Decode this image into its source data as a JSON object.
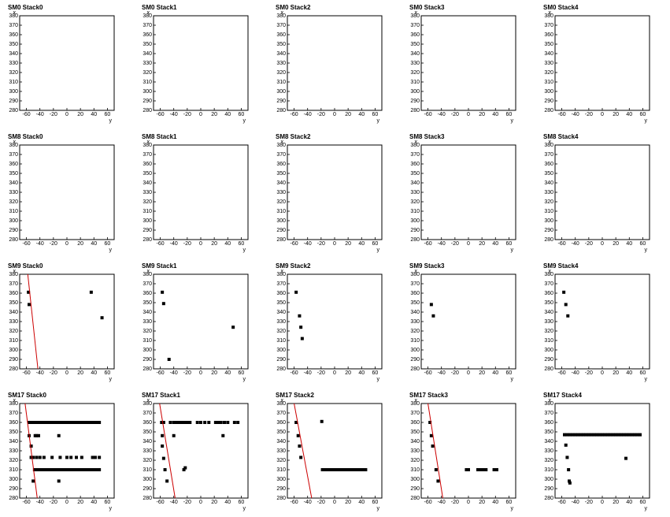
{
  "chart_data": [
    {
      "type": "scatter",
      "title": "SM0 Stack0",
      "xlabel": "y",
      "ylabel": "x",
      "xlim": [
        -70,
        70
      ],
      "ylim": [
        280,
        380
      ],
      "xticks": [
        -60,
        -40,
        -20,
        0,
        20,
        40,
        60
      ],
      "yticks": [
        280,
        290,
        300,
        310,
        320,
        330,
        340,
        350,
        360,
        370,
        380
      ],
      "series": []
    },
    {
      "type": "scatter",
      "title": "SM0 Stack1",
      "xlabel": "y",
      "ylabel": "x",
      "xlim": [
        -70,
        70
      ],
      "ylim": [
        280,
        380
      ],
      "xticks": [
        -60,
        -40,
        -20,
        0,
        20,
        40,
        60
      ],
      "yticks": [
        280,
        290,
        300,
        310,
        320,
        330,
        340,
        350,
        360,
        370,
        380
      ],
      "series": []
    },
    {
      "type": "scatter",
      "title": "SM0 Stack2",
      "xlabel": "y",
      "ylabel": "x",
      "xlim": [
        -70,
        70
      ],
      "ylim": [
        280,
        380
      ],
      "xticks": [
        -60,
        -40,
        -20,
        0,
        20,
        40,
        60
      ],
      "yticks": [
        280,
        290,
        300,
        310,
        320,
        330,
        340,
        350,
        360,
        370,
        380
      ],
      "series": []
    },
    {
      "type": "scatter",
      "title": "SM0 Stack3",
      "xlabel": "y",
      "ylabel": "x",
      "xlim": [
        -70,
        70
      ],
      "ylim": [
        280,
        380
      ],
      "xticks": [
        -60,
        -40,
        -20,
        0,
        20,
        40,
        60
      ],
      "yticks": [
        280,
        290,
        300,
        310,
        320,
        330,
        340,
        350,
        360,
        370,
        380
      ],
      "series": []
    },
    {
      "type": "scatter",
      "title": "SM0 Stack4",
      "xlabel": "y",
      "ylabel": "x",
      "xlim": [
        -70,
        70
      ],
      "ylim": [
        280,
        380
      ],
      "xticks": [
        -60,
        -40,
        -20,
        0,
        20,
        40,
        60
      ],
      "yticks": [
        280,
        290,
        300,
        310,
        320,
        330,
        340,
        350,
        360,
        370,
        380
      ],
      "series": []
    },
    {
      "type": "scatter",
      "title": "SM8 Stack0",
      "xlabel": "y",
      "ylabel": "x",
      "xlim": [
        -70,
        70
      ],
      "ylim": [
        280,
        380
      ],
      "xticks": [
        -60,
        -40,
        -20,
        0,
        20,
        40,
        60
      ],
      "yticks": [
        280,
        290,
        300,
        310,
        320,
        330,
        340,
        350,
        360,
        370,
        380
      ],
      "series": []
    },
    {
      "type": "scatter",
      "title": "SM8 Stack1",
      "xlabel": "y",
      "ylabel": "x",
      "xlim": [
        -70,
        70
      ],
      "ylim": [
        280,
        380
      ],
      "xticks": [
        -60,
        -40,
        -20,
        0,
        20,
        40,
        60
      ],
      "yticks": [
        280,
        290,
        300,
        310,
        320,
        330,
        340,
        350,
        360,
        370,
        380
      ],
      "series": []
    },
    {
      "type": "scatter",
      "title": "SM8 Stack2",
      "xlabel": "y",
      "ylabel": "x",
      "xlim": [
        -70,
        70
      ],
      "ylim": [
        280,
        380
      ],
      "xticks": [
        -60,
        -40,
        -20,
        0,
        20,
        40,
        60
      ],
      "yticks": [
        280,
        290,
        300,
        310,
        320,
        330,
        340,
        350,
        360,
        370,
        380
      ],
      "series": []
    },
    {
      "type": "scatter",
      "title": "SM8 Stack3",
      "xlabel": "y",
      "ylabel": "x",
      "xlim": [
        -70,
        70
      ],
      "ylim": [
        280,
        380
      ],
      "xticks": [
        -60,
        -40,
        -20,
        0,
        20,
        40,
        60
      ],
      "yticks": [
        280,
        290,
        300,
        310,
        320,
        330,
        340,
        350,
        360,
        370,
        380
      ],
      "series": []
    },
    {
      "type": "scatter",
      "title": "SM8 Stack4",
      "xlabel": "y",
      "ylabel": "x",
      "xlim": [
        -70,
        70
      ],
      "ylim": [
        280,
        380
      ],
      "xticks": [
        -60,
        -40,
        -20,
        0,
        20,
        40,
        60
      ],
      "yticks": [
        280,
        290,
        300,
        310,
        320,
        330,
        340,
        350,
        360,
        370,
        380
      ],
      "series": []
    },
    {
      "type": "scatter",
      "title": "SM9 Stack0",
      "xlabel": "y",
      "ylabel": "x",
      "xlim": [
        -70,
        70
      ],
      "ylim": [
        280,
        380
      ],
      "xticks": [
        -60,
        -40,
        -20,
        0,
        20,
        40,
        60
      ],
      "yticks": [
        280,
        290,
        300,
        310,
        320,
        330,
        340,
        350,
        360,
        370,
        380
      ],
      "series": [
        {
          "color": "#000000",
          "x": [
            -57,
            -56,
            36,
            52
          ],
          "values": [
            361,
            348,
            361,
            334
          ]
        },
        {
          "color": "#cc0000",
          "mode": "line",
          "x": [
            -58,
            -43
          ],
          "values": [
            380,
            280
          ]
        }
      ]
    },
    {
      "type": "scatter",
      "title": "SM9 Stack1",
      "xlabel": "y",
      "ylabel": "x",
      "xlim": [
        -70,
        70
      ],
      "ylim": [
        280,
        380
      ],
      "xticks": [
        -60,
        -40,
        -20,
        0,
        20,
        40,
        60
      ],
      "yticks": [
        280,
        290,
        300,
        310,
        320,
        330,
        340,
        350,
        360,
        370,
        380
      ],
      "series": [
        {
          "color": "#000000",
          "x": [
            -57,
            -55,
            -47,
            48
          ],
          "values": [
            361,
            349,
            290,
            324
          ]
        }
      ]
    },
    {
      "type": "scatter",
      "title": "SM9 Stack2",
      "xlabel": "y",
      "ylabel": "x",
      "xlim": [
        -70,
        70
      ],
      "ylim": [
        280,
        380
      ],
      "xticks": [
        -60,
        -40,
        -20,
        0,
        20,
        40,
        60
      ],
      "yticks": [
        280,
        290,
        300,
        310,
        320,
        330,
        340,
        350,
        360,
        370,
        380
      ],
      "series": [
        {
          "color": "#000000",
          "x": [
            -57,
            -52,
            -50,
            -48
          ],
          "values": [
            361,
            336,
            324,
            312
          ]
        }
      ]
    },
    {
      "type": "scatter",
      "title": "SM9 Stack3",
      "xlabel": "y",
      "ylabel": "x",
      "xlim": [
        -70,
        70
      ],
      "ylim": [
        280,
        380
      ],
      "xticks": [
        -60,
        -40,
        -20,
        0,
        20,
        40,
        60
      ],
      "yticks": [
        280,
        290,
        300,
        310,
        320,
        330,
        340,
        350,
        360,
        370,
        380
      ],
      "series": [
        {
          "color": "#000000",
          "x": [
            -55,
            -52
          ],
          "values": [
            348,
            336
          ]
        }
      ]
    },
    {
      "type": "scatter",
      "title": "SM9 Stack4",
      "xlabel": "y",
      "ylabel": "x",
      "xlim": [
        -70,
        70
      ],
      "ylim": [
        280,
        380
      ],
      "xticks": [
        -60,
        -40,
        -20,
        0,
        20,
        40,
        60
      ],
      "yticks": [
        280,
        290,
        300,
        310,
        320,
        330,
        340,
        350,
        360,
        370,
        380
      ],
      "series": [
        {
          "color": "#000000",
          "x": [
            -57,
            -54,
            -51
          ],
          "values": [
            361,
            348,
            336
          ]
        }
      ]
    },
    {
      "type": "scatter",
      "title": "SM17 Stack0",
      "xlabel": "y",
      "ylabel": "x",
      "xlim": [
        -70,
        70
      ],
      "ylim": [
        280,
        380
      ],
      "xticks": [
        -60,
        -40,
        -20,
        0,
        20,
        40,
        60
      ],
      "yticks": [
        280,
        290,
        300,
        310,
        320,
        330,
        340,
        350,
        360,
        370,
        380
      ],
      "series": [
        {
          "color": "#000000",
          "x": [
            -56,
            -52,
            -48,
            -44,
            -40,
            -36,
            -32,
            -28,
            -24,
            -20,
            -16,
            -12,
            -8,
            -4,
            0,
            4,
            8,
            12,
            16,
            20,
            24,
            28,
            32,
            36,
            40,
            44,
            48
          ],
          "values": [
            360,
            360,
            360,
            360,
            360,
            360,
            360,
            360,
            360,
            360,
            360,
            360,
            360,
            360,
            360,
            360,
            360,
            360,
            360,
            360,
            360,
            360,
            360,
            360,
            360,
            360,
            360
          ]
        },
        {
          "color": "#000000",
          "x": [
            -48,
            -44,
            -40,
            -36,
            -32,
            -28,
            -24,
            -20,
            -16,
            -12,
            -8,
            -4,
            0,
            4,
            8,
            12,
            16,
            20,
            24,
            28,
            32,
            36,
            40,
            44,
            48
          ],
          "values": [
            310,
            310,
            310,
            310,
            310,
            310,
            310,
            310,
            310,
            310,
            310,
            310,
            310,
            310,
            310,
            310,
            310,
            310,
            310,
            310,
            310,
            310,
            310,
            310,
            310
          ]
        },
        {
          "color": "#000000",
          "x": [
            -56,
            -47,
            -45,
            -42,
            -12,
            -53,
            -50,
            -45,
            -40,
            -34,
            -22,
            -10,
            0,
            6,
            14,
            22,
            38,
            42,
            48,
            -53,
            -50,
            -12
          ],
          "values": [
            346,
            346,
            346,
            346,
            346,
            323,
            323,
            323,
            323,
            323,
            323,
            323,
            323,
            323,
            323,
            323,
            323,
            323,
            323,
            335,
            298,
            298
          ]
        },
        {
          "color": "#cc0000",
          "mode": "line",
          "x": [
            -62,
            -44
          ],
          "values": [
            380,
            280
          ]
        }
      ]
    },
    {
      "type": "scatter",
      "title": "SM17 Stack1",
      "xlabel": "y",
      "ylabel": "x",
      "xlim": [
        -70,
        70
      ],
      "ylim": [
        280,
        380
      ],
      "xticks": [
        -60,
        -40,
        -20,
        0,
        20,
        40,
        60
      ],
      "yticks": [
        280,
        290,
        300,
        310,
        320,
        330,
        340,
        350,
        360,
        370,
        380
      ],
      "series": [
        {
          "color": "#000000",
          "x": [
            -58,
            -55,
            -45,
            -40,
            -36,
            -32,
            -28,
            -24,
            -20,
            -16,
            -5,
            0,
            6,
            12,
            22,
            26,
            30,
            35,
            40,
            50,
            55
          ],
          "values": [
            360,
            360,
            360,
            360,
            360,
            360,
            360,
            360,
            360,
            360,
            360,
            360,
            360,
            360,
            360,
            360,
            360,
            360,
            360,
            360,
            360
          ]
        },
        {
          "color": "#000000",
          "x": [
            -57,
            -40,
            33,
            -57,
            -55,
            -53,
            -25,
            -23,
            -50
          ],
          "values": [
            346,
            346,
            346,
            335,
            322,
            310,
            310,
            312,
            298
          ]
        },
        {
          "color": "#cc0000",
          "mode": "line",
          "x": [
            -61,
            -38
          ],
          "values": [
            380,
            280
          ]
        }
      ]
    },
    {
      "type": "scatter",
      "title": "SM17 Stack2",
      "xlabel": "y",
      "ylabel": "x",
      "xlim": [
        -70,
        70
      ],
      "ylim": [
        280,
        380
      ],
      "xticks": [
        -60,
        -40,
        -20,
        0,
        20,
        40,
        60
      ],
      "yticks": [
        280,
        290,
        300,
        310,
        320,
        330,
        340,
        350,
        360,
        370,
        380
      ],
      "series": [
        {
          "color": "#000000",
          "x": [
            -57,
            -54,
            -52,
            -50,
            -19
          ],
          "values": [
            360,
            346,
            335,
            323,
            361
          ]
        },
        {
          "color": "#000000",
          "x": [
            -18,
            -14,
            -10,
            -6,
            -2,
            2,
            6,
            10,
            14,
            18,
            22,
            26,
            30,
            34,
            38,
            42,
            46
          ],
          "values": [
            310,
            310,
            310,
            310,
            310,
            310,
            310,
            310,
            310,
            310,
            310,
            310,
            310,
            310,
            310,
            310,
            310
          ]
        },
        {
          "color": "#cc0000",
          "mode": "line",
          "x": [
            -60,
            -34
          ],
          "values": [
            380,
            280
          ]
        }
      ]
    },
    {
      "type": "scatter",
      "title": "SM17 Stack3",
      "xlabel": "y",
      "ylabel": "x",
      "xlim": [
        -70,
        70
      ],
      "ylim": [
        280,
        380
      ],
      "xticks": [
        -60,
        -40,
        -20,
        0,
        20,
        40,
        60
      ],
      "yticks": [
        280,
        290,
        300,
        310,
        320,
        330,
        340,
        350,
        360,
        370,
        380
      ],
      "series": [
        {
          "color": "#000000",
          "x": [
            -57,
            -55,
            -53,
            -48,
            -45,
            -3,
            0,
            14,
            18,
            22,
            26,
            38,
            42
          ],
          "values": [
            360,
            346,
            335,
            310,
            298,
            310,
            310,
            310,
            310,
            310,
            310,
            310,
            310
          ]
        },
        {
          "color": "#cc0000",
          "mode": "line",
          "x": [
            -60,
            -38
          ],
          "values": [
            380,
            280
          ]
        }
      ]
    },
    {
      "type": "scatter",
      "title": "SM17 Stack4",
      "xlabel": "y",
      "ylabel": "x",
      "xlim": [
        -70,
        70
      ],
      "ylim": [
        280,
        380
      ],
      "xticks": [
        -60,
        -40,
        -20,
        0,
        20,
        40,
        60
      ],
      "yticks": [
        280,
        290,
        300,
        310,
        320,
        330,
        340,
        350,
        360,
        370,
        380
      ],
      "series": [
        {
          "color": "#000000",
          "x": [
            -56,
            -52,
            -48,
            -44,
            -40,
            -36,
            -32,
            -28,
            -24,
            -20,
            -16,
            -12,
            -8,
            -4,
            0,
            4,
            8,
            12,
            16,
            20,
            24,
            28,
            32,
            36,
            40,
            44,
            48,
            52,
            56
          ],
          "values": [
            347,
            347,
            347,
            347,
            347,
            347,
            347,
            347,
            347,
            347,
            347,
            347,
            347,
            347,
            347,
            347,
            347,
            347,
            347,
            347,
            347,
            347,
            347,
            347,
            347,
            347,
            347,
            347,
            347
          ]
        },
        {
          "color": "#000000",
          "x": [
            -54,
            -52,
            -50,
            -49,
            -48,
            35
          ],
          "values": [
            336,
            323,
            310,
            298,
            296,
            322
          ]
        }
      ]
    }
  ]
}
